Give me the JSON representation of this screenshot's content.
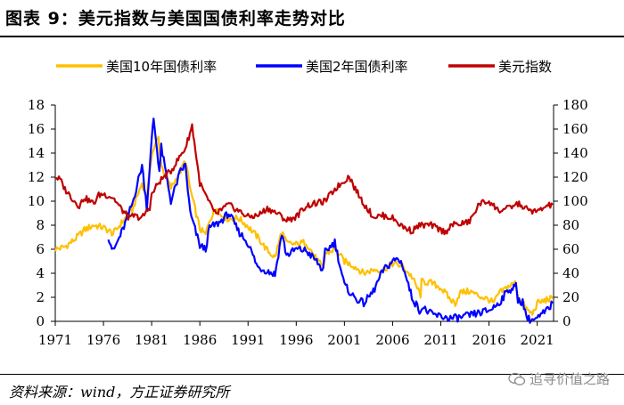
{
  "header": {
    "title": "图表 9：美元指数与美国国债利率走势对比",
    "source": "资料来源：wind，方正证券研究所",
    "watermark": "追寻价值之路"
  },
  "colors": {
    "treasury_10y": "#FFC000",
    "treasury_2y": "#0000FF",
    "dollar_index": "#C00000"
  },
  "chart_data": {
    "type": "line",
    "title": "美元指数与美国国债利率走势对比",
    "x_ticks": [
      "1971",
      "1976",
      "1981",
      "1986",
      "1991",
      "1996",
      "2001",
      "2006",
      "2011",
      "2016",
      "2021"
    ],
    "xlim": [
      1971,
      2022.7
    ],
    "y_left_ticks": [
      "0",
      "2",
      "4",
      "6",
      "8",
      "10",
      "12",
      "14",
      "16",
      "18"
    ],
    "ylim_left": [
      0,
      18
    ],
    "y_right_ticks": [
      "0",
      "20",
      "40",
      "60",
      "80",
      "100",
      "120",
      "140",
      "160",
      "180"
    ],
    "ylim_right": [
      0,
      180
    ],
    "legend_position": "top",
    "series": [
      {
        "name": "美国10年国债利率",
        "axis": "left",
        "color": "#FFC000",
        "x": [
          1971,
          1972,
          1973,
          1974,
          1975,
          1976,
          1977,
          1978,
          1979,
          1980,
          1980.5,
          1981,
          1981.7,
          1982,
          1983,
          1984,
          1984.5,
          1985,
          1986,
          1986.6,
          1987,
          1987.8,
          1988,
          1989,
          1990,
          1991,
          1992,
          1993,
          1993.8,
          1994.5,
          1995,
          1996,
          1997,
          1998,
          1998.8,
          1999,
          2000,
          2001,
          2002,
          2003,
          2004,
          2005,
          2006,
          2007,
          2008,
          2008.9,
          2009,
          2010,
          2011,
          2012,
          2012.5,
          2013,
          2014,
          2015,
          2016,
          2016.5,
          2017,
          2018,
          2018.8,
          2019,
          2020,
          2020.5,
          2021,
          2022,
          2022.6
        ],
        "values": [
          6.0,
          6.2,
          6.8,
          7.6,
          8.0,
          7.8,
          7.3,
          8.3,
          9.3,
          11.5,
          10.3,
          13.9,
          15.3,
          13.0,
          11.1,
          12.5,
          13.4,
          11.0,
          7.7,
          7.2,
          8.4,
          9.6,
          8.9,
          8.5,
          8.6,
          7.9,
          7.0,
          5.9,
          5.3,
          7.5,
          6.5,
          6.4,
          6.6,
          5.3,
          4.4,
          5.6,
          6.0,
          5.0,
          4.6,
          4.0,
          4.3,
          4.3,
          4.8,
          4.6,
          3.7,
          2.2,
          3.3,
          3.2,
          2.8,
          1.8,
          1.5,
          2.4,
          2.5,
          2.1,
          1.8,
          1.5,
          2.3,
          2.9,
          3.2,
          2.1,
          0.9,
          0.6,
          1.5,
          1.8,
          1.9
        ]
      },
      {
        "name": "美国2年国债利率",
        "axis": "left",
        "color": "#0000FF",
        "x": [
          1976.5,
          1977,
          1978,
          1979,
          1980,
          1980.5,
          1981,
          1981.2,
          1981.8,
          1982,
          1983,
          1984,
          1984.5,
          1985,
          1986,
          1986.6,
          1987,
          1988,
          1989,
          1990,
          1991,
          1992,
          1993,
          1993.8,
          1994.5,
          1995,
          1996,
          1997,
          1998,
          1998.8,
          1999,
          2000,
          2001,
          2002,
          2003,
          2004,
          2005,
          2006,
          2006.5,
          2007,
          2008,
          2008.9,
          2009,
          2010,
          2011,
          2012,
          2013,
          2014,
          2015,
          2016,
          2017,
          2018,
          2018.8,
          2019,
          2019.5,
          2020,
          2020.5,
          2021,
          2022,
          2022.6
        ],
        "values": [
          7.1,
          5.8,
          7.6,
          9.8,
          13.0,
          9.5,
          15.0,
          16.9,
          12.5,
          14.5,
          10.0,
          12.5,
          13.0,
          9.0,
          6.3,
          6.0,
          7.8,
          8.2,
          9.0,
          7.5,
          6.5,
          4.5,
          4.2,
          3.9,
          7.3,
          5.5,
          6.0,
          5.9,
          5.1,
          4.2,
          5.8,
          6.6,
          3.0,
          2.0,
          1.5,
          2.5,
          4.2,
          5.0,
          5.2,
          4.8,
          2.0,
          0.8,
          1.2,
          0.6,
          0.4,
          0.25,
          0.3,
          0.5,
          0.7,
          0.9,
          1.5,
          2.6,
          2.9,
          1.8,
          1.6,
          0.2,
          0.14,
          0.2,
          0.9,
          1.5
        ]
      },
      {
        "name": "美元指数",
        "axis": "right",
        "color": "#C00000",
        "x": [
          1971,
          1971.5,
          1972,
          1973,
          1973.5,
          1974,
          1975,
          1975.5,
          1976,
          1977,
          1978,
          1978.8,
          1979,
          1980,
          1980.8,
          1981,
          1981.6,
          1982,
          1983,
          1984,
          1984.5,
          1985.2,
          1986,
          1987,
          1987.9,
          1988,
          1989,
          1990,
          1991,
          1992,
          1993,
          1994,
          1995,
          1996,
          1997,
          1998,
          1999,
          2000,
          2001,
          2001.5,
          2002,
          2003,
          2004,
          2005,
          2006,
          2007,
          2008,
          2008.5,
          2009,
          2010,
          2011,
          2011.5,
          2012,
          2013,
          2014,
          2015,
          2016,
          2017,
          2018,
          2019,
          2020,
          2021,
          2022,
          2022.6
        ],
        "values": [
          120,
          118,
          110,
          100,
          96,
          103,
          98,
          105,
          106,
          103,
          92,
          85,
          88,
          86,
          95,
          105,
          114,
          118,
          125,
          138,
          144,
          163,
          115,
          98,
          87,
          92,
          97,
          92,
          87,
          88,
          94,
          90,
          84,
          87,
          96,
          98,
          100,
          110,
          117,
          121,
          112,
          98,
          87,
          88,
          86,
          79,
          75,
          79,
          80,
          80,
          76,
          74,
          80,
          81,
          83,
          98,
          100,
          92,
          94,
          98,
          93,
          91,
          96,
          97
        ]
      }
    ]
  }
}
